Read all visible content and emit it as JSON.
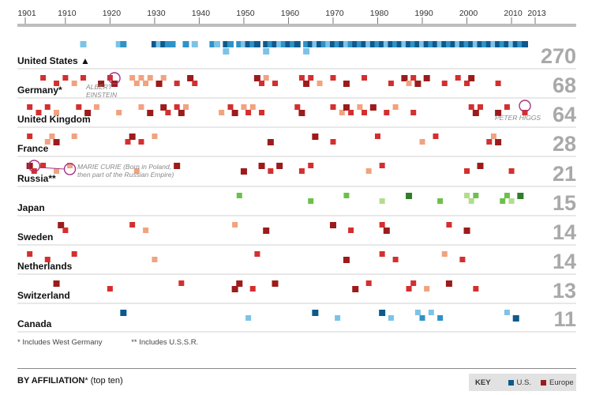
{
  "colors": {
    "us": "#0e5a8c",
    "us_light": "#7cc3e8",
    "us_mid": "#2e93c9",
    "europe": "#9c1b1b",
    "europe_mid": "#d42f2f",
    "europe_light": "#f1a27e",
    "japan": "#6cc04a",
    "japan_light": "#b4dc8f",
    "japan_dark": "#2f7d2a",
    "count_text": "#a9a9a9",
    "us_count_text": "#145b8c",
    "annotation_circle": "#a3337f"
  },
  "chart_data": {
    "type": "scatter",
    "x_axis": {
      "range": [
        1901,
        2013
      ],
      "ticks": [
        1901,
        1910,
        1920,
        1930,
        1940,
        1950,
        1960,
        1970,
        1980,
        1990,
        2000,
        2010,
        2013
      ],
      "tick_labels": [
        "1901",
        "1910",
        "1920",
        "1930",
        "1940",
        "1950",
        "1960",
        "1970",
        "1980",
        "1990",
        "2000",
        "2010",
        "2013"
      ]
    },
    "section_title": "BY AFFILIATION",
    "section_title_suffix": "* (top ten)",
    "rows": [
      {
        "country": "United States",
        "marker": "▲",
        "count": "270",
        "region": "us",
        "points": [
          [
            1914,
            "l"
          ],
          [
            1922,
            "l"
          ],
          [
            1923,
            "m"
          ],
          [
            1930,
            "d"
          ],
          [
            1931,
            "l"
          ],
          [
            1932,
            "d"
          ],
          [
            1933,
            "m"
          ],
          [
            1934,
            "m"
          ],
          [
            1937,
            "m"
          ],
          [
            1939,
            "l"
          ],
          [
            1943,
            "m"
          ],
          [
            1944,
            "l"
          ],
          [
            1946,
            "d"
          ],
          [
            1946,
            "l"
          ],
          [
            1947,
            "m"
          ],
          [
            1949,
            "m"
          ],
          [
            1950,
            "l"
          ],
          [
            1951,
            "d"
          ],
          [
            1952,
            "m"
          ],
          [
            1953,
            "d"
          ],
          [
            1955,
            "d"
          ],
          [
            1955,
            "l"
          ],
          [
            1956,
            "m"
          ],
          [
            1957,
            "d"
          ],
          [
            1958,
            "l"
          ],
          [
            1959,
            "m"
          ],
          [
            1960,
            "d"
          ],
          [
            1961,
            "m"
          ],
          [
            1962,
            "d"
          ],
          [
            1964,
            "m"
          ],
          [
            1964,
            "l"
          ],
          [
            1965,
            "d"
          ],
          [
            1966,
            "l"
          ],
          [
            1967,
            "d"
          ],
          [
            1968,
            "m"
          ],
          [
            1969,
            "l"
          ],
          [
            1970,
            "d"
          ],
          [
            1971,
            "m"
          ],
          [
            1972,
            "d"
          ],
          [
            1973,
            "l"
          ],
          [
            1974,
            "m"
          ],
          [
            1975,
            "d"
          ],
          [
            1976,
            "m"
          ],
          [
            1977,
            "d"
          ],
          [
            1978,
            "l"
          ],
          [
            1979,
            "d"
          ],
          [
            1980,
            "m"
          ],
          [
            1981,
            "d"
          ],
          [
            1982,
            "l"
          ],
          [
            1983,
            "d"
          ],
          [
            1984,
            "m"
          ],
          [
            1985,
            "d"
          ],
          [
            1986,
            "l"
          ],
          [
            1987,
            "d"
          ],
          [
            1988,
            "m"
          ],
          [
            1989,
            "d"
          ],
          [
            1990,
            "l"
          ],
          [
            1991,
            "d"
          ],
          [
            1992,
            "m"
          ],
          [
            1993,
            "d"
          ],
          [
            1994,
            "l"
          ],
          [
            1995,
            "d"
          ],
          [
            1996,
            "m"
          ],
          [
            1997,
            "d"
          ],
          [
            1998,
            "l"
          ],
          [
            1999,
            "d"
          ],
          [
            2000,
            "m"
          ],
          [
            2001,
            "d"
          ],
          [
            2002,
            "l"
          ],
          [
            2003,
            "d"
          ],
          [
            2004,
            "m"
          ],
          [
            2005,
            "d"
          ],
          [
            2006,
            "l"
          ],
          [
            2007,
            "d"
          ],
          [
            2008,
            "m"
          ],
          [
            2009,
            "d"
          ],
          [
            2010,
            "l"
          ],
          [
            2011,
            "d"
          ],
          [
            2012,
            "m"
          ],
          [
            2013,
            "d"
          ]
        ]
      },
      {
        "country": "Germany*",
        "count": "68",
        "region": "europe",
        "points": [
          [
            1905,
            "m"
          ],
          [
            1908,
            "m"
          ],
          [
            1910,
            "m"
          ],
          [
            1912,
            "l"
          ],
          [
            1914,
            "m"
          ],
          [
            1918,
            "d"
          ],
          [
            1920,
            "m"
          ],
          [
            1921,
            "d"
          ],
          [
            1925,
            "l"
          ],
          [
            1926,
            "l"
          ],
          [
            1927,
            "l"
          ],
          [
            1928,
            "l"
          ],
          [
            1929,
            "l"
          ],
          [
            1931,
            "d"
          ],
          [
            1932,
            "l"
          ],
          [
            1935,
            "m"
          ],
          [
            1938,
            "d"
          ],
          [
            1939,
            "m"
          ],
          [
            1953,
            "d"
          ],
          [
            1954,
            "m"
          ],
          [
            1955,
            "l"
          ],
          [
            1957,
            "m"
          ],
          [
            1963,
            "m"
          ],
          [
            1964,
            "d"
          ],
          [
            1965,
            "m"
          ],
          [
            1967,
            "l"
          ],
          [
            1970,
            "m"
          ],
          [
            1973,
            "d"
          ],
          [
            1977,
            "m"
          ],
          [
            1983,
            "m"
          ],
          [
            1986,
            "d"
          ],
          [
            1987,
            "l"
          ],
          [
            1988,
            "m"
          ],
          [
            1989,
            "d"
          ],
          [
            1991,
            "d"
          ],
          [
            1995,
            "m"
          ],
          [
            1998,
            "m"
          ],
          [
            2000,
            "m"
          ],
          [
            2001,
            "d"
          ],
          [
            2007,
            "m"
          ]
        ]
      },
      {
        "country": "United Kingdom",
        "count": "64",
        "region": "europe",
        "points": [
          [
            1902,
            "m"
          ],
          [
            1904,
            "m"
          ],
          [
            1906,
            "m"
          ],
          [
            1908,
            "l"
          ],
          [
            1913,
            "m"
          ],
          [
            1915,
            "d"
          ],
          [
            1917,
            "l"
          ],
          [
            1922,
            "l"
          ],
          [
            1927,
            "l"
          ],
          [
            1929,
            "d"
          ],
          [
            1932,
            "d"
          ],
          [
            1933,
            "m"
          ],
          [
            1935,
            "m"
          ],
          [
            1936,
            "d"
          ],
          [
            1937,
            "l"
          ],
          [
            1945,
            "l"
          ],
          [
            1947,
            "m"
          ],
          [
            1948,
            "d"
          ],
          [
            1950,
            "l"
          ],
          [
            1951,
            "m"
          ],
          [
            1952,
            "l"
          ],
          [
            1954,
            "m"
          ],
          [
            1962,
            "m"
          ],
          [
            1963,
            "d"
          ],
          [
            1970,
            "m"
          ],
          [
            1972,
            "l"
          ],
          [
            1973,
            "d"
          ],
          [
            1974,
            "m"
          ],
          [
            1976,
            "l"
          ],
          [
            1977,
            "m"
          ],
          [
            1979,
            "d"
          ],
          [
            1982,
            "m"
          ],
          [
            1984,
            "l"
          ],
          [
            1988,
            "m"
          ],
          [
            2001,
            "m"
          ],
          [
            2002,
            "d"
          ],
          [
            2003,
            "m"
          ],
          [
            2007,
            "d"
          ],
          [
            2009,
            "m"
          ],
          [
            2013,
            "m"
          ]
        ]
      },
      {
        "country": "France",
        "count": "28",
        "region": "europe",
        "points": [
          [
            1902,
            "m"
          ],
          [
            1906,
            "l"
          ],
          [
            1907,
            "l"
          ],
          [
            1908,
            "d"
          ],
          [
            1912,
            "l"
          ],
          [
            1924,
            "m"
          ],
          [
            1925,
            "d"
          ],
          [
            1927,
            "m"
          ],
          [
            1930,
            "l"
          ],
          [
            1956,
            "d"
          ],
          [
            1966,
            "d"
          ],
          [
            1970,
            "m"
          ],
          [
            1980,
            "m"
          ],
          [
            1990,
            "l"
          ],
          [
            1993,
            "m"
          ],
          [
            2005,
            "m"
          ],
          [
            2006,
            "l"
          ],
          [
            2007,
            "d"
          ]
        ]
      },
      {
        "country": "Russia**",
        "count": "21",
        "region": "europe",
        "points": [
          [
            1902,
            "d"
          ],
          [
            1903,
            "m"
          ],
          [
            1905,
            "m"
          ],
          [
            1908,
            "l"
          ],
          [
            1911,
            "l"
          ],
          [
            1926,
            "l"
          ],
          [
            1935,
            "d"
          ],
          [
            1950,
            "d"
          ],
          [
            1954,
            "d"
          ],
          [
            1956,
            "m"
          ],
          [
            1958,
            "d"
          ],
          [
            1963,
            "m"
          ],
          [
            1965,
            "m"
          ],
          [
            1978,
            "l"
          ],
          [
            1981,
            "m"
          ],
          [
            2000,
            "m"
          ],
          [
            2003,
            "d"
          ],
          [
            2010,
            "m"
          ]
        ]
      },
      {
        "country": "Japan",
        "count": "15",
        "region": "japan",
        "points": [
          [
            1949,
            "m"
          ],
          [
            1965,
            "m"
          ],
          [
            1973,
            "m"
          ],
          [
            1981,
            "l"
          ],
          [
            1987,
            "d"
          ],
          [
            1994,
            "m"
          ],
          [
            2000,
            "l"
          ],
          [
            2001,
            "l"
          ],
          [
            2002,
            "m"
          ],
          [
            2008,
            "m"
          ],
          [
            2009,
            "m"
          ],
          [
            2010,
            "l"
          ],
          [
            2012,
            "d"
          ]
        ]
      },
      {
        "country": "Sweden",
        "count": "14",
        "region": "europe",
        "points": [
          [
            1909,
            "d"
          ],
          [
            1910,
            "m"
          ],
          [
            1925,
            "m"
          ],
          [
            1928,
            "l"
          ],
          [
            1948,
            "l"
          ],
          [
            1955,
            "d"
          ],
          [
            1970,
            "d"
          ],
          [
            1974,
            "m"
          ],
          [
            1981,
            "m"
          ],
          [
            1982,
            "d"
          ],
          [
            1996,
            "m"
          ],
          [
            2000,
            "d"
          ]
        ]
      },
      {
        "country": "Netherlands",
        "count": "14",
        "region": "europe",
        "points": [
          [
            1902,
            "m"
          ],
          [
            1906,
            "m"
          ],
          [
            1912,
            "m"
          ],
          [
            1930,
            "l"
          ],
          [
            1953,
            "m"
          ],
          [
            1973,
            "d"
          ],
          [
            1981,
            "m"
          ],
          [
            1984,
            "m"
          ],
          [
            1995,
            "l"
          ],
          [
            1999,
            "m"
          ]
        ]
      },
      {
        "country": "Switzerland",
        "count": "13",
        "region": "europe",
        "points": [
          [
            1908,
            "d"
          ],
          [
            1920,
            "m"
          ],
          [
            1936,
            "m"
          ],
          [
            1948,
            "d"
          ],
          [
            1949,
            "d"
          ],
          [
            1952,
            "m"
          ],
          [
            1957,
            "d"
          ],
          [
            1975,
            "d"
          ],
          [
            1978,
            "m"
          ],
          [
            1987,
            "m"
          ],
          [
            1988,
            "m"
          ],
          [
            1991,
            "l"
          ],
          [
            1996,
            "d"
          ],
          [
            2002,
            "m"
          ]
        ]
      },
      {
        "country": "Canada",
        "count": "11",
        "region": "us",
        "points": [
          [
            1923,
            "d"
          ],
          [
            1951,
            "l"
          ],
          [
            1966,
            "d"
          ],
          [
            1971,
            "l"
          ],
          [
            1981,
            "d"
          ],
          [
            1983,
            "l"
          ],
          [
            1989,
            "l"
          ],
          [
            1990,
            "m"
          ],
          [
            1992,
            "l"
          ],
          [
            1994,
            "m"
          ],
          [
            2009,
            "l"
          ],
          [
            2011,
            "d"
          ]
        ]
      }
    ],
    "annotations": [
      {
        "text": "ALBERT",
        "row": 1
      },
      {
        "text": "EINSTEIN",
        "row": 1
      },
      {
        "text": "PETER HIGGS",
        "row": 2
      },
      {
        "text": "MARIE CURIE (Born in Poland,",
        "row": 4
      },
      {
        "text": "then part of the Russian Empire)",
        "row": 4
      }
    ],
    "key": {
      "title": "KEY",
      "items": [
        {
          "label": "U.S.",
          "color": "#0e5a8c"
        },
        {
          "label": "Europe",
          "color": "#9c1b1b"
        }
      ]
    }
  },
  "footnotes": [
    "* Includes West Germany",
    "** Includes U.S.S.R."
  ]
}
